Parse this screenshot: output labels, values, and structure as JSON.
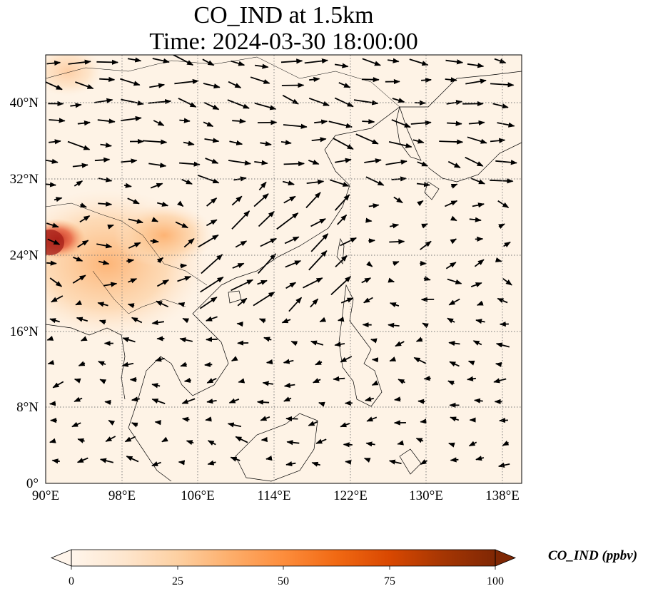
{
  "title": {
    "line1": "CO_IND at 1.5km",
    "line2": "Time: 2024-03-30 18:00:00"
  },
  "axes": {
    "x_ticks": [
      "90°E",
      "98°E",
      "106°E",
      "114°E",
      "122°E",
      "130°E",
      "138°E"
    ],
    "y_ticks": [
      "40°N",
      "32°N",
      "24°N",
      "16°N",
      "8°N",
      "0°"
    ],
    "lon_range": [
      90,
      140
    ],
    "lat_range": [
      0,
      45
    ],
    "gridlines": true
  },
  "colorbar": {
    "label": "CO_IND (ppbv)",
    "ticks": [
      "0",
      "25",
      "50",
      "75",
      "100"
    ],
    "range": [
      0,
      100
    ],
    "extend": "both",
    "colormap": [
      "#fff5eb",
      "#fee6ce",
      "#fdd0a2",
      "#fdae6b",
      "#fd8d3c",
      "#f16913",
      "#d94801",
      "#a63603",
      "#7f2704"
    ]
  },
  "chart_data": {
    "type": "heatmap",
    "variable": "CO_IND",
    "units": "ppbv",
    "level": "1.5km",
    "time": "2024-03-30 18:00:00",
    "high_concentration_region": "Southwest China / Myanmar / northern Indochina (approx. 90–110°E, 16–30°N), max near 90°E 25°N"
  }
}
